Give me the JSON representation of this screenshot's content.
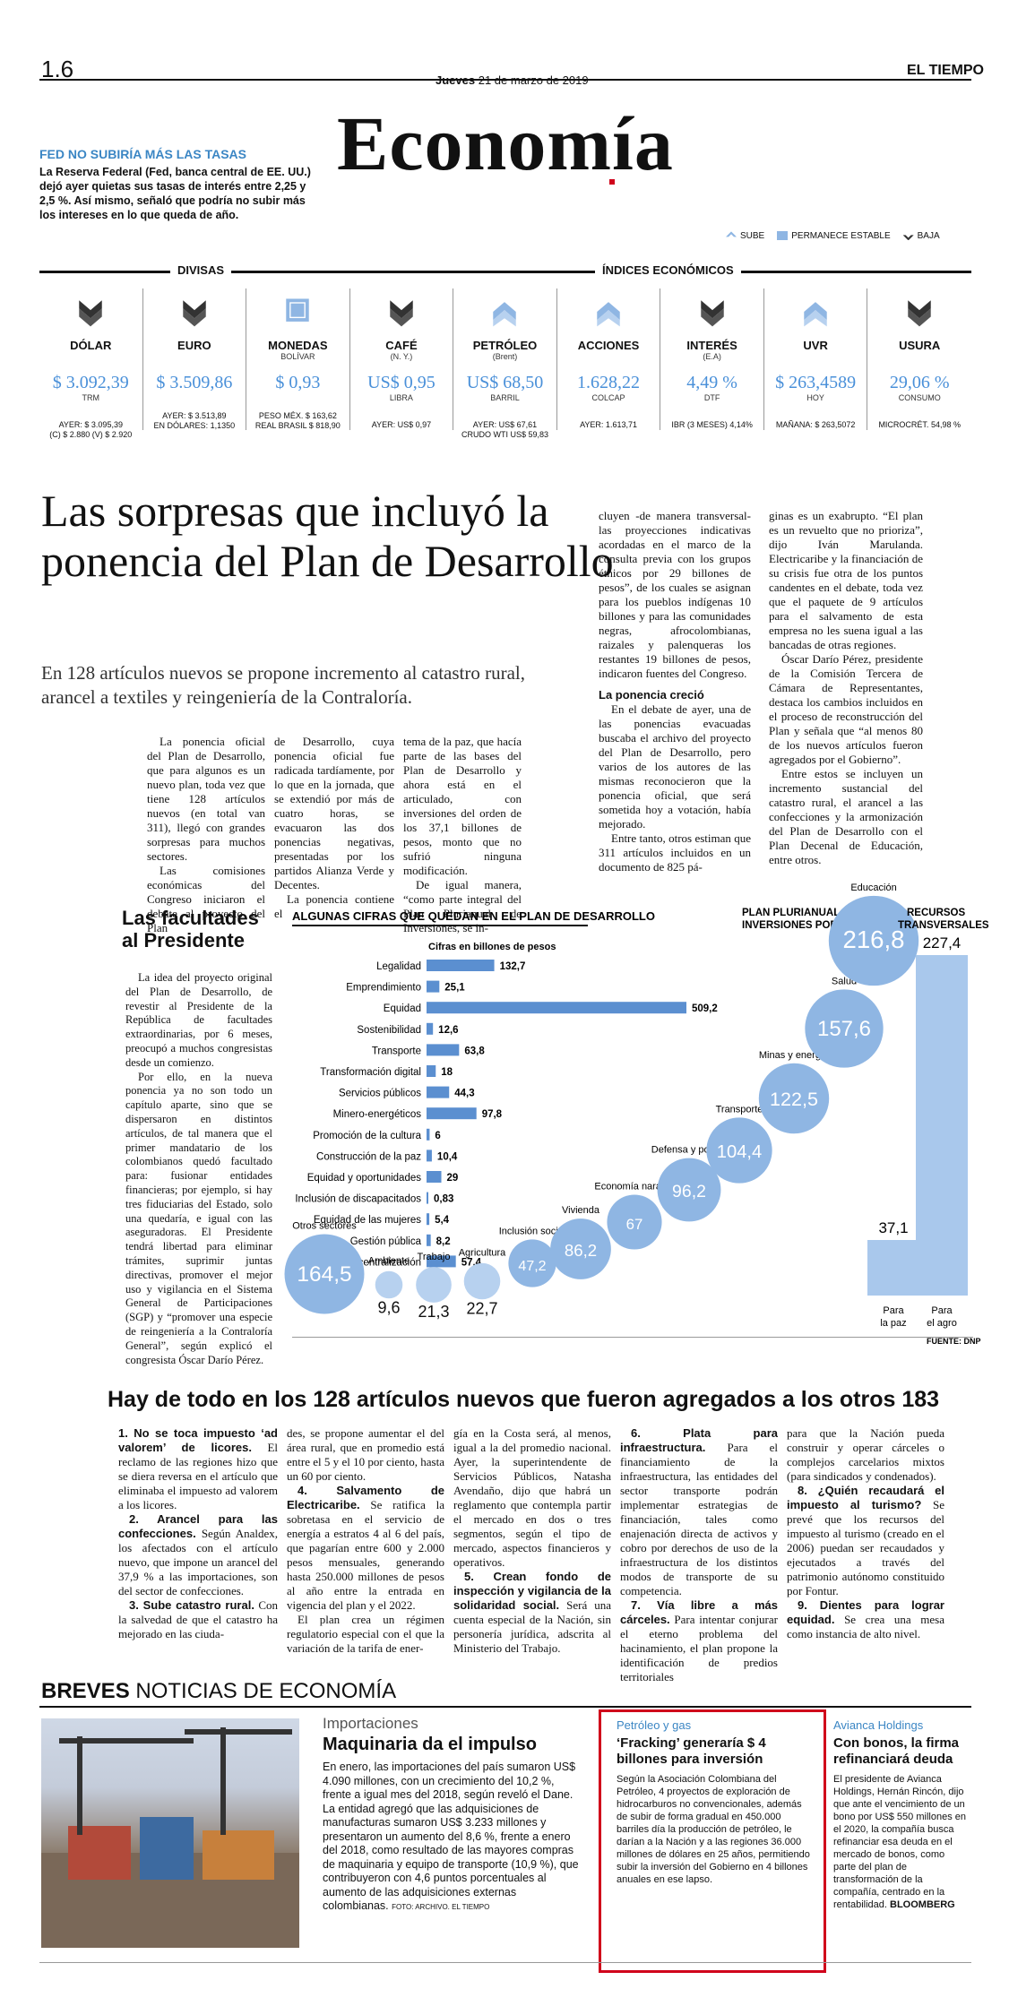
{
  "header": {
    "page_number": "1.6",
    "date": "Jueves 21 de marzo de 2019",
    "date_day": "Jueves",
    "date_rest": "21 de marzo de 2019",
    "brand": "EL TIEMPO",
    "section": "Economía"
  },
  "fed": {
    "head": "FED NO SUBIRÍA MÁS LAS TASAS",
    "body": "La Reserva Federal (Fed, banca central de EE. UU.) dejó ayer quietas sus tasas de interés entre 2,25 y 2,5 %. Así mismo, señaló que podría no subir más los intereses en lo que queda de año."
  },
  "legend": {
    "up": "SUBE",
    "stable": "PERMANECE ESTABLE",
    "down": "BAJA"
  },
  "indicators": {
    "divisas_title": "DIVISAS",
    "indices_title": "ÍNDICES ECONÓMICOS",
    "items": [
      {
        "name": "DÓLAR",
        "sub": "",
        "value": "$ 3.092,39",
        "unit": "TRM",
        "extra1": "AYER: $ 3.095,39",
        "extra2": "(C) $ 2.880 (V) $ 2.920",
        "trend": "down"
      },
      {
        "name": "EURO",
        "sub": "",
        "value": "$ 3.509,86",
        "unit": "",
        "extra1": "AYER: $ 3.513,89",
        "extra2": "EN DÓLARES: 1,1350",
        "trend": "down"
      },
      {
        "name": "MONEDAS",
        "sub": "BOLÍVAR",
        "value": "$ 0,93",
        "unit": "",
        "extra1": "PESO MÉX. $ 163,62",
        "extra2": "REAL BRASIL $ 818,90",
        "trend": "stable"
      },
      {
        "name": "CAFÉ",
        "sub": "(N. Y.)",
        "value": "US$ 0,95",
        "unit": "LIBRA",
        "extra1": "AYER: US$ 0,97",
        "extra2": "",
        "trend": "down"
      },
      {
        "name": "PETRÓLEO",
        "sub": "(Brent)",
        "value": "US$ 68,50",
        "unit": "BARRIL",
        "extra1": "AYER: US$ 67,61",
        "extra2": "CRUDO WTI US$ 59,83",
        "trend": "up"
      },
      {
        "name": "ACCIONES",
        "sub": "",
        "value": "1.628,22",
        "unit": "COLCAP",
        "extra1": "AYER: 1.613,71",
        "extra2": "",
        "trend": "up"
      },
      {
        "name": "INTERÉS",
        "sub": "(E.A)",
        "value": "4,49 %",
        "unit": "DTF",
        "extra1": "IBR (3 MESES) 4,14%",
        "extra2": "",
        "trend": "down"
      },
      {
        "name": "UVR",
        "sub": "",
        "value": "$ 263,4589",
        "unit": "HOY",
        "extra1": "MAÑANA: $ 263,5072",
        "extra2": "",
        "trend": "up"
      },
      {
        "name": "USURA",
        "sub": "",
        "value": "29,06 %",
        "unit": "CONSUMO",
        "extra1": "MICROCRÉT. 54,98 %",
        "extra2": "",
        "trend": "down"
      }
    ]
  },
  "story": {
    "headline": "Las sorpresas que incluyó la ponencia del Plan de Desarrollo",
    "dek": "En 128 artículos nuevos se propone incremento al catastro rural, arancel a textiles y reingeniería de la Contraloría.",
    "col1": "La ponencia oficial del Plan de Desarrollo, que para algunos es un nuevo plan, toda vez que tiene 128 artículos nuevos (en total van 311), llegó con grandes sorpresas para muchos sectores.",
    "col1b": "Las comisiones económicas del Congreso iniciaron el debate al proyecto del Plan",
    "col2": "de Desarrollo, cuya ponencia oficial fue radicada tardíamente, por lo que en la jornada, que se extendió por más de cuatro horas, se evacuaron las dos ponencias negativas, presentadas por los partidos Alianza Verde y Decentes.",
    "col2b": "La ponencia contiene el",
    "col3": "tema de la paz, que hacía parte de las bases del Plan de Desarrollo y ahora está en el articulado, con inversiones del orden de los 37,1 billones de pesos, monto que no sufrió ninguna modificación.",
    "col3b": "De igual manera, “como parte integral del Plan Plurianual de Inversiones, se in-",
    "col4": "cluyen -de manera transversal- las proyecciones indicativas acordadas en el marco de la consulta previa con los grupos étnicos por 29 billones de pesos”, de los cuales se asignan para los pueblos indígenas 10 billones y para las comunidades negras, afrocolombianas, raizales y palenqueras los restantes 19 billones de pesos, indicaron fuentes del Congreso.",
    "col4_sub": "La ponencia creció",
    "col4b": "En el debate de ayer, una de las ponencias evacuadas buscaba el archivo del proyecto del Plan de Desarrollo, pero varios de los autores de las mismas reconocieron que la ponencia oficial, que será sometida hoy a votación, había mejorado.",
    "col4c": "Entre tanto, otros estiman que 311 artículos incluidos en un documento de 825 pá-",
    "col5": "ginas es un exabrupto. “El plan es un revuelto que no prioriza”, dijo Iván Marulanda. Electricaribe y la financiación de su crisis fue otra de los puntos candentes en el debate, toda vez que el paquete de 9 artículos para el salvamento de esta empresa no les suena igual a las bancadas de otras regiones.",
    "col5b": "Óscar Darío Pérez, presidente de la Comisión Tercera de Cámara de Representantes, destaca los cambios incluidos en el proceso de reconstrucción del Plan y señala que “al menos 80 de los nuevos artículos fueron agregados por el Gobierno”.",
    "col5c": "Entre estos se incluyen un incremento sustancial del catastro rural, el arancel a las confecciones y la armonización del Plan de Desarrollo con el Plan Decenal de Educación, entre otros."
  },
  "side": {
    "head": "Las facultades al Presidente",
    "p1": "La idea del proyecto original del Plan de Desarrollo, de revestir al Presidente de la República de facultades extraordinarias, por 6 meses, preocupó a muchos congresistas desde un comienzo.",
    "p2": "Por ello, en la nueva ponencia ya no son todo un capítulo aparte, sino que se dispersaron en distintos artículos, de tal manera que el primer mandatario de los colombianos quedó facultado para: fusionar entidades financieras; por ejemplo, si hay tres fiduciarias del Estado, solo una quedaría, e igual con las aseguradoras. El Presidente tendrá libertad para eliminar trámites, suprimir juntas directivas, promover el mejor uso y vigilancia en el Sistema General de Participaciones (SGP) y “promover una especie de reingeniería a la Contraloría General”, según explicó el congresista Óscar Darío Pérez."
  },
  "chart_data": [
    {
      "type": "bar",
      "title": "ALGUNAS CIFRAS QUE QUEDAN EN EL PLAN DE DESARROLLO",
      "subtitle": "Cifras en billones de pesos",
      "categories": [
        "Legalidad",
        "Emprendimiento",
        "Equidad",
        "Sostenibilidad",
        "Transporte",
        "Transformación digital",
        "Servicios públicos",
        "Minero-energéticos",
        "Promoción de la cultura",
        "Construcción de la paz",
        "Equidad y oportunidades",
        "Inclusión de discapacitados",
        "Equidad de las mujeres",
        "Gestión pública",
        "Descentralización"
      ],
      "values": [
        132.7,
        25.1,
        509.2,
        12.6,
        63.8,
        18,
        44.3,
        97.8,
        6,
        10.4,
        29,
        0.83,
        5.4,
        8.2,
        57.4
      ],
      "labels": [
        "132,7",
        "25,1",
        "509,2",
        "12,6",
        "63,8",
        "18",
        "44,3",
        "97,8",
        "6",
        "10,4",
        "29",
        "0,83",
        "5,4",
        "8,2",
        "57,4"
      ]
    },
    {
      "type": "scatter",
      "title": "PLAN PLURIANUAL DE INVERSIONES POR SECTORES",
      "series": [
        {
          "name": "Otros sectores",
          "value": 164.5,
          "label": "164,5"
        },
        {
          "name": "Ambiente",
          "value": 9.6,
          "label": "9,6"
        },
        {
          "name": "Trabajo",
          "value": 21.3,
          "label": "21,3"
        },
        {
          "name": "Agricultura",
          "value": 22.7,
          "label": "22,7"
        },
        {
          "name": "Inclusión social",
          "value": 47.2,
          "label": "47,2"
        },
        {
          "name": "Vivienda",
          "value": 86.2,
          "label": "86,2"
        },
        {
          "name": "Economía naranja",
          "value": 67,
          "label": "67"
        },
        {
          "name": "Defensa y policía",
          "value": 96.2,
          "label": "96,2"
        },
        {
          "name": "Transporte",
          "value": 104.4,
          "label": "104,4"
        },
        {
          "name": "Minas y energía",
          "value": 122.5,
          "label": "122,5"
        },
        {
          "name": "Salud",
          "value": 157.6,
          "label": "157,6"
        },
        {
          "name": "Educación",
          "value": 216.8,
          "label": "216,8"
        }
      ]
    },
    {
      "type": "bar",
      "title": "RECURSOS TRANSVERSALES",
      "categories": [
        "Para la paz",
        "Para el agro"
      ],
      "values": [
        37.1,
        227.4
      ],
      "labels": [
        "37,1",
        "227,4"
      ]
    }
  ],
  "chart_source": "FUENTE: DNP",
  "articles": {
    "title": "Hay de todo en los 128 artículos nuevos que fueron agregados a los otros 183",
    "a1": "1. No se toca impuesto ‘ad valorem’ de licores.",
    "a1t": "El reclamo de las regiones hizo que se diera reversa en el artículo que eliminaba el impuesto ad valorem a los licores.",
    "a2": "2. Arancel para las confecciones.",
    "a2t": "Según Analdex, los afectados con el artículo nuevo, que impone un arancel del 37,9 % a las importaciones, son del sector de confecciones.",
    "a3": "3. Sube catastro rural.",
    "a3t": "Con la salvedad de que el catastro ha mejorado en las ciuda-",
    "b1t": "des, se propone aumentar el del área rural, que en promedio está entre el 5 y el 10 por ciento, hasta un 60 por ciento.",
    "a4": "4. Salvamento de Electricaribe.",
    "a4t": "Se ratifica la sobretasa en el servicio de energía a estratos 4 al 6 del país, que pagarían entre 600 y 2.000 pesos mensuales, generando hasta 250.000 millones de pesos al año entre la entrada en vigencia del plan y el 2022.",
    "a4t2": "El plan crea un régimen regulatorio especial con el que la variación de la tarifa de ener-",
    "c1t": "gía en la Costa será, al menos, igual a la del promedio nacional. Ayer, la superintendente de Servicios Públicos, Natasha Avendaño, dijo que habrá un reglamento que contempla partir el mercado en dos o tres segmentos, según el tipo de mercado, aspectos financieros y operativos.",
    "a5": "5. Crean fondo de inspección y vigilancia de la solidaridad social.",
    "a5t": "Será una cuenta especial de la Nación, sin personería jurídica, adscrita al Ministerio del Trabajo.",
    "a6": "6. Plata para infraestructura.",
    "a6t": "Para el financiamiento de la infraestructura, las entidades del sector transporte podrán implementar estrategias de financiación, tales como enajenación directa de activos y cobro por derechos de uso de la infraestructura de los distintos modos de transporte de su competencia.",
    "a7": "7. Vía libre a más cárceles.",
    "a7t": "Para intentar conjurar el eterno problema del hacinamiento, el plan propone la identificación de predios territoriales",
    "d1t": "para que la Nación pueda construir y operar cárceles o complejos carcelarios mixtos (para sindicados y condenados).",
    "a8": "8. ¿Quién recaudará el impuesto al turismo?",
    "a8t": "Se prevé que los recursos del impuesto al turismo (creado en el 2006) puedan ser recaudados y ejecutados a través del patrimonio autónomo constituido por Fontur.",
    "a9": "9. Dientes para lograr equidad.",
    "a9t": "Se crea una mesa como instancia de alto nivel."
  },
  "breves": {
    "label_bold": "BREVES",
    "label_rest": "NOTICIAS DE ECONOMÍA",
    "b1_kicker": "Importaciones",
    "b1_head": "Maquinaria da el impulso",
    "b1_body": "En enero, las importaciones del país sumaron US$ 4.090 millones, con un crecimiento del 10,2 %, frente a igual mes del 2018, según reveló el Dane. La entidad agregó que las adquisiciones de manufacturas sumaron US$ 3.233 millones y presentaron un aumento del 8,6 %, frente a enero del 2018, como resultado de las mayores compras de maquinaria y equipo de transporte (10,9 %), que contribuyeron con 4,6 puntos porcentuales al aumento de las adquisiciones externas colombianas.",
    "b1_credit": "FOTO: ARCHIVO. EL TIEMPO",
    "b2_kicker": "Petróleo y gas",
    "b2_head": "‘Fracking’ generaría $ 4 billones para inversión",
    "b2_body": "Según la Asociación Colombiana del Petróleo, 4 proyectos de exploración de hidrocarburos no convencionales, además de subir de forma gradual en 450.000 barriles día la producción de petróleo, le darían a la Nación y a las regiones 36.000 millones de dólares en 25 años, permitiendo subir la inversión del Gobierno en 4 billones anuales en ese lapso.",
    "b3_kicker": "Avianca Holdings",
    "b3_head": "Con bonos, la firma refinanciará deuda",
    "b3_body": "El presidente de Avianca Holdings, Hernán Rincón, dijo que ante el vencimiento de un bono por US$ 550 millones en el 2020, la compañía busca refinanciar esa deuda en el mercado de bonos, como parte del plan de transformación de la compañía, centrado en la rentabilidad.",
    "b3_credit": "BLOOMBERG"
  },
  "colors": {
    "accent_blue": "#4a90d9",
    "kicker_blue": "#3b86c4",
    "red": "#d0021b",
    "bar_blue": "#5b8fd0",
    "bubble_blue": "#8fb6e3"
  }
}
